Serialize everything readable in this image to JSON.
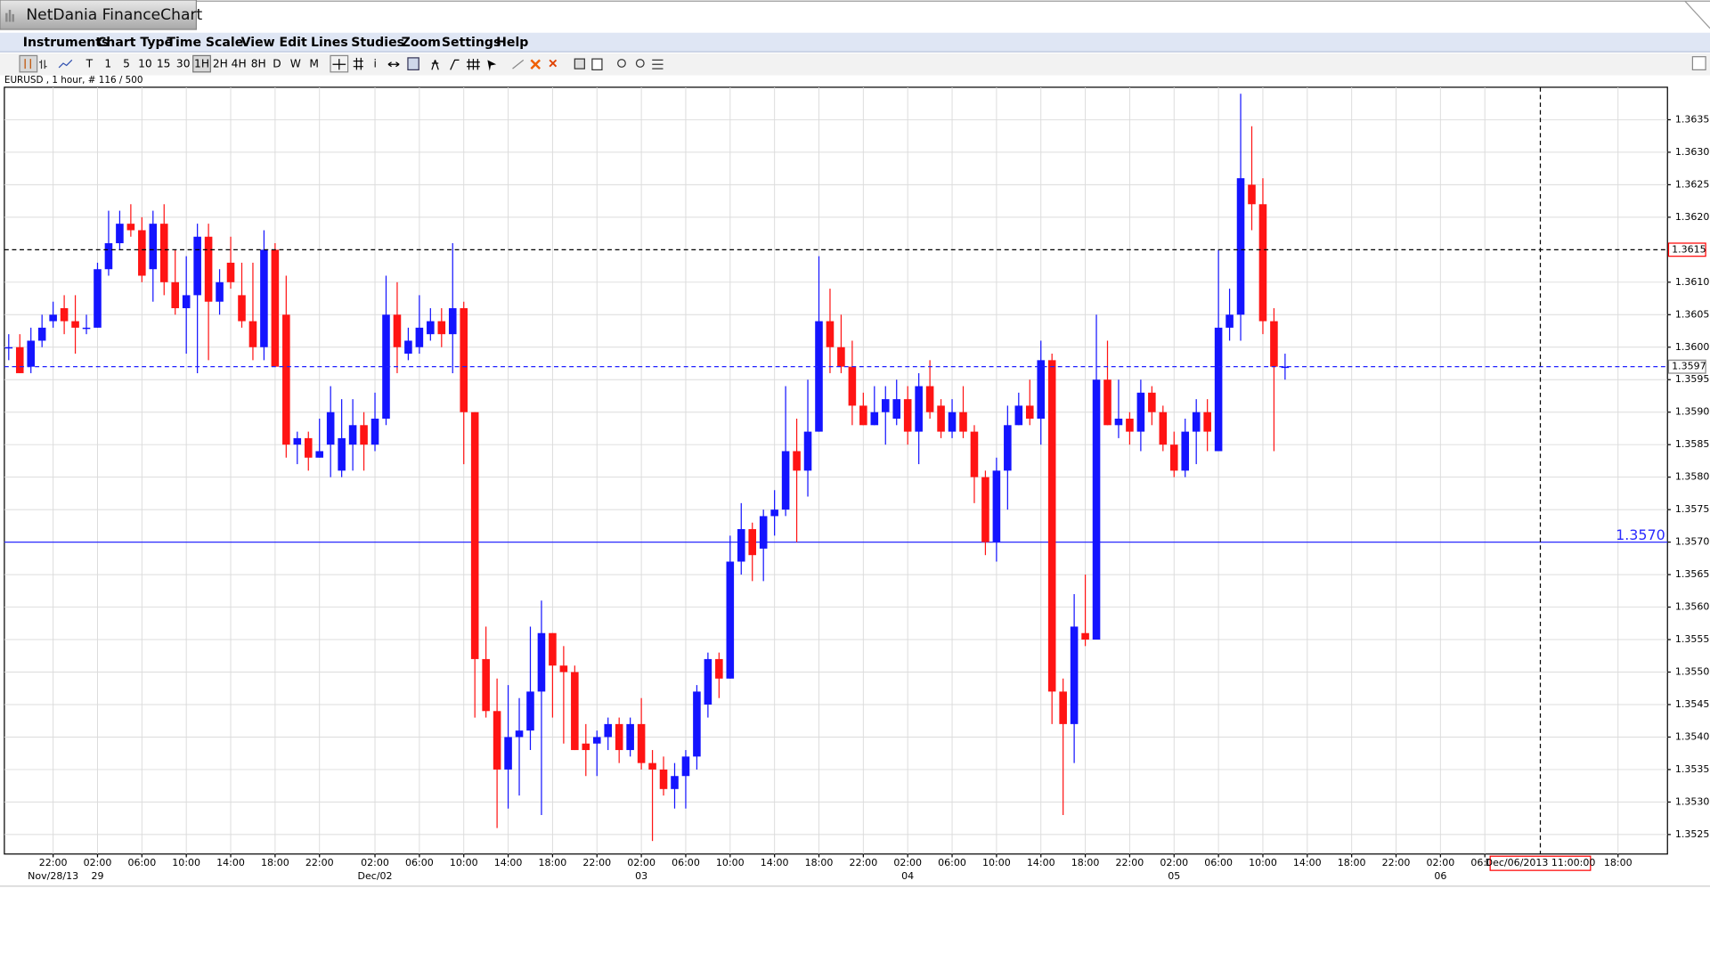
{
  "window": {
    "title": "NetDania FinanceChart",
    "menu": [
      "Instruments",
      "Chart Type",
      "Time Scale",
      "View",
      "Edit",
      "Lines",
      "Studies",
      "Zoom",
      "Settings",
      "Help"
    ],
    "toolbar": [
      "T",
      "1",
      "5",
      "10",
      "15",
      "30",
      "1H",
      "2H",
      "4H",
      "8H",
      "D",
      "W",
      "M"
    ],
    "symbol_info": "EURUSD , 1 hour, # 116 / 500"
  },
  "chart_data": {
    "type": "candlestick",
    "categories": [
      null,
      null,
      null,
      null,
      "22:00",
      null,
      null,
      null,
      "02:00",
      null,
      null,
      null,
      "06:00",
      null,
      null,
      null,
      "10:00",
      null,
      null,
      null,
      "14:00",
      null,
      null,
      null,
      "18:00",
      null,
      null,
      null,
      "22:00",
      null,
      null,
      null,
      null,
      "02:00",
      null,
      null,
      null,
      "06:00",
      null,
      null,
      null,
      "10:00",
      null,
      null,
      null,
      "14:00",
      null,
      null,
      null,
      "18:00",
      null,
      null,
      null,
      "22:00",
      null,
      null,
      null,
      "02:00",
      null,
      null,
      null,
      "06:00",
      null,
      null,
      null,
      "10:00",
      null,
      null,
      null,
      "14:00",
      null,
      null,
      null,
      "18:00",
      null,
      null,
      null,
      "22:00",
      null,
      null,
      null,
      "02:00",
      null,
      null,
      null,
      "06:00",
      null,
      null,
      null,
      "10:00",
      null,
      null,
      null,
      "14:00",
      null,
      null,
      null,
      "18:00",
      null,
      null,
      null,
      "22:00",
      null,
      null,
      null,
      "02:00",
      null,
      null,
      null,
      "06:00",
      null,
      null,
      null,
      "10:00",
      null,
      null,
      null,
      "14:00",
      null,
      null,
      null,
      "18:00",
      null,
      null,
      null,
      "22:00",
      null,
      null,
      null,
      "02:00",
      null,
      null,
      null,
      "06:00",
      null,
      null,
      null,
      null,
      null,
      null,
      null,
      null,
      null,
      null,
      null,
      "18:00",
      null,
      null,
      null
    ],
    "dates": [
      null,
      null,
      null,
      null,
      "Nov/28/13",
      null,
      null,
      null,
      "29",
      null,
      null,
      null,
      null,
      null,
      null,
      null,
      null,
      null,
      null,
      null,
      null,
      null,
      null,
      null,
      null,
      null,
      null,
      null,
      null,
      null,
      null,
      null,
      null,
      "Dec/02",
      null,
      null,
      null,
      null,
      null,
      null,
      null,
      null,
      null,
      null,
      null,
      null,
      null,
      null,
      null,
      null,
      null,
      null,
      null,
      null,
      null,
      null,
      null,
      "03",
      null,
      null,
      null,
      null,
      null,
      null,
      null,
      null,
      null,
      null,
      null,
      null,
      null,
      null,
      null,
      null,
      null,
      null,
      null,
      null,
      null,
      null,
      null,
      "04",
      null,
      null,
      null,
      null,
      null,
      null,
      null,
      null,
      null,
      null,
      null,
      null,
      null,
      null,
      null,
      null,
      null,
      null,
      null,
      null,
      null,
      null,
      null,
      "05",
      null,
      null,
      null,
      null,
      null,
      null,
      null,
      null,
      null,
      null,
      null,
      null,
      null,
      null,
      null,
      null,
      null,
      null,
      null,
      null,
      null,
      null,
      null,
      "06",
      null,
      null,
      null,
      null,
      null,
      null,
      null,
      null,
      null,
      null,
      null,
      null,
      null,
      null,
      null,
      null,
      null,
      null,
      null
    ],
    "open": [
      1.36,
      1.36,
      1.3597,
      1.3601,
      1.3604,
      1.3606,
      1.3604,
      1.3603,
      1.3603,
      1.3612,
      1.3616,
      1.3619,
      1.3618,
      1.3612,
      1.3619,
      1.361,
      1.3606,
      1.3608,
      1.3617,
      1.3607,
      1.3613,
      1.3608,
      1.3604,
      1.36,
      1.3615,
      1.3605,
      1.3585,
      1.3586,
      1.3583,
      1.3585,
      1.3581,
      1.3585,
      1.3588,
      1.3585,
      1.3589,
      1.3605,
      1.3599,
      1.36,
      1.3602,
      1.3604,
      1.3602,
      1.3606,
      1.359,
      1.3552,
      1.3544,
      1.3535,
      1.354,
      1.3541,
      1.3547,
      1.3556,
      1.3551,
      1.355,
      1.3539,
      1.3539,
      1.354,
      1.3542,
      1.3538,
      1.3542,
      1.3536,
      1.3535,
      1.3532,
      1.3534,
      1.3537,
      1.3545,
      1.3552,
      1.3549,
      1.3567,
      1.3572,
      1.3569,
      1.3574,
      1.3575,
      1.3584,
      1.3581,
      1.3587,
      1.3604,
      1.36,
      1.3597,
      1.3591,
      1.3588,
      1.359,
      1.3589,
      1.3592,
      1.3587,
      1.3594,
      1.3591,
      1.3587,
      1.359,
      1.3587,
      1.358,
      1.357,
      1.3581,
      1.3588,
      1.3591,
      1.3589,
      1.3598,
      1.3547,
      1.3542,
      1.3556,
      1.3555,
      1.3595,
      1.3588,
      1.3589,
      1.3587,
      1.3593,
      1.359,
      1.3585,
      1.3581,
      1.3587,
      1.359,
      1.3584,
      1.3603,
      1.3605,
      1.3625,
      1.3622,
      1.3604,
      1.3597,
      null,
      null,
      null,
      null,
      null,
      null,
      null,
      null,
      null,
      null,
      null,
      null,
      null,
      null,
      null,
      null,
      null,
      null,
      null,
      null,
      null,
      null,
      null,
      null,
      null,
      null,
      null,
      null,
      null,
      null,
      null,
      null,
      null
    ],
    "high": [
      1.3602,
      1.3602,
      1.3603,
      1.3605,
      1.3607,
      1.3608,
      1.3608,
      1.3605,
      1.3613,
      1.3621,
      1.3621,
      1.3622,
      1.362,
      1.3621,
      1.3622,
      1.3615,
      1.3614,
      1.3619,
      1.3619,
      1.3612,
      1.3617,
      1.3613,
      1.3613,
      1.3618,
      1.3616,
      1.3611,
      1.3587,
      1.3587,
      1.3589,
      1.3594,
      1.3592,
      1.3592,
      1.359,
      1.3593,
      1.3611,
      1.361,
      1.3603,
      1.3608,
      1.3606,
      1.3606,
      1.3616,
      1.3607,
      1.359,
      1.3557,
      1.3549,
      1.3548,
      1.3546,
      1.3557,
      1.3561,
      1.3556,
      1.3554,
      1.3551,
      1.3542,
      1.3541,
      1.3543,
      1.3543,
      1.3543,
      1.3546,
      1.3538,
      1.3537,
      1.3536,
      1.3538,
      1.3548,
      1.3553,
      1.3553,
      1.3571,
      1.3576,
      1.3573,
      1.3575,
      1.3578,
      1.3594,
      1.3589,
      1.3595,
      1.3614,
      1.3609,
      1.3605,
      1.3601,
      1.3593,
      1.3594,
      1.3594,
      1.3595,
      1.3594,
      1.3596,
      1.3598,
      1.3592,
      1.3592,
      1.3594,
      1.3588,
      1.3581,
      1.3583,
      1.3591,
      1.3593,
      1.3595,
      1.3601,
      1.3599,
      1.3549,
      1.3562,
      1.3565,
      1.3605,
      1.3601,
      1.3595,
      1.359,
      1.3595,
      1.3594,
      1.3591,
      1.3587,
      1.3589,
      1.3592,
      1.3592,
      1.3615,
      1.3609,
      1.3639,
      1.3634,
      1.3626,
      1.3606,
      1.3599,
      null,
      null,
      null,
      null,
      null,
      null,
      null,
      null,
      null,
      null,
      null,
      null,
      null,
      null,
      null,
      null,
      null,
      null,
      null,
      null,
      null,
      null,
      null,
      null,
      null,
      null,
      null,
      null,
      null,
      null,
      null,
      null,
      null
    ],
    "low": [
      1.3598,
      1.3596,
      1.3596,
      1.36,
      1.3603,
      1.3602,
      1.3599,
      1.3602,
      1.3603,
      1.3611,
      1.3615,
      1.3617,
      1.361,
      1.3607,
      1.3608,
      1.3605,
      1.3599,
      1.3596,
      1.3598,
      1.3605,
      1.3609,
      1.3603,
      1.3598,
      1.3598,
      1.3597,
      1.3583,
      1.3582,
      1.3581,
      1.3583,
      1.358,
      1.358,
      1.3581,
      1.3581,
      1.3584,
      1.3588,
      1.3596,
      1.3598,
      1.3599,
      1.3601,
      1.36,
      1.3596,
      1.3582,
      1.3543,
      1.3543,
      1.3526,
      1.3529,
      1.3531,
      1.3538,
      1.3528,
      1.3543,
      1.3539,
      1.3538,
      1.3534,
      1.3534,
      1.3538,
      1.3536,
      1.3537,
      1.3535,
      1.3524,
      1.3531,
      1.3529,
      1.3529,
      1.3535,
      1.3543,
      1.3546,
      1.3549,
      1.3565,
      1.3564,
      1.3564,
      1.3571,
      1.3574,
      1.357,
      1.3577,
      1.3587,
      1.3596,
      1.3596,
      1.3588,
      1.3588,
      1.3588,
      1.3585,
      1.3588,
      1.3585,
      1.3582,
      1.3589,
      1.3586,
      1.3586,
      1.3586,
      1.3576,
      1.3568,
      1.3567,
      1.3575,
      1.3588,
      1.3588,
      1.3585,
      1.3542,
      1.3528,
      1.3536,
      1.3554,
      1.3555,
      1.3588,
      1.3586,
      1.3585,
      1.3584,
      1.3588,
      1.3584,
      1.358,
      1.358,
      1.3582,
      1.3584,
      1.3584,
      1.3601,
      1.3601,
      1.3618,
      1.3602,
      1.3584,
      1.3595,
      null,
      null,
      null,
      null,
      null,
      null,
      null,
      null,
      null,
      null,
      null,
      null,
      null,
      null,
      null,
      null,
      null,
      null,
      null,
      null,
      null,
      null,
      null,
      null,
      null,
      null,
      null,
      null,
      null,
      null,
      null,
      null,
      null
    ],
    "close": [
      1.36,
      1.3596,
      1.3601,
      1.3603,
      1.3605,
      1.3604,
      1.3603,
      1.3603,
      1.3612,
      1.3616,
      1.3619,
      1.3618,
      1.3611,
      1.3619,
      1.361,
      1.3606,
      1.3608,
      1.3617,
      1.3607,
      1.361,
      1.361,
      1.3604,
      1.36,
      1.3615,
      1.3597,
      1.3585,
      1.3586,
      1.3583,
      1.3584,
      1.359,
      1.3586,
      1.3588,
      1.3585,
      1.3589,
      1.3605,
      1.36,
      1.3601,
      1.3603,
      1.3604,
      1.3602,
      1.3606,
      1.359,
      1.3552,
      1.3544,
      1.3535,
      1.354,
      1.3541,
      1.3547,
      1.3556,
      1.3551,
      1.355,
      1.3538,
      1.3538,
      1.354,
      1.3542,
      1.3538,
      1.3542,
      1.3536,
      1.3535,
      1.3532,
      1.3534,
      1.3537,
      1.3547,
      1.3552,
      1.3549,
      1.3567,
      1.3572,
      1.3568,
      1.3574,
      1.3575,
      1.3584,
      1.3581,
      1.3587,
      1.3604,
      1.36,
      1.3597,
      1.3591,
      1.3588,
      1.359,
      1.3592,
      1.3592,
      1.3587,
      1.3594,
      1.359,
      1.3587,
      1.359,
      1.3587,
      1.358,
      1.357,
      1.3581,
      1.3588,
      1.3591,
      1.3589,
      1.3598,
      1.3547,
      1.3542,
      1.3557,
      1.3555,
      1.3595,
      1.3588,
      1.3589,
      1.3587,
      1.3593,
      1.359,
      1.3585,
      1.3581,
      1.3587,
      1.359,
      1.3587,
      1.3603,
      1.3605,
      1.3626,
      1.3622,
      1.3604,
      1.3597,
      1.3597,
      null,
      null,
      null,
      null,
      null,
      null,
      null,
      null,
      null,
      null,
      null,
      null,
      null,
      null,
      null,
      null,
      null,
      null,
      null,
      null,
      null,
      null,
      null,
      null,
      null,
      null,
      null,
      null,
      null,
      null,
      null,
      null,
      null
    ],
    "up_color": "#1414ff",
    "down_color": "#ff1414",
    "ylim": [
      1.3522,
      1.364
    ],
    "yticks": [
      1.3525,
      {
        "value": 1.353,
        "label": "1.3530"
      },
      1.3535,
      {
        "value": 1.354,
        "label": "1.3540"
      },
      1.3545,
      {
        "value": 1.355,
        "label": "1.3550"
      },
      1.3555,
      {
        "value": 1.356,
        "label": "1.3560"
      },
      1.3565,
      {
        "value": 1.357,
        "label": "1.3570"
      },
      1.3575,
      {
        "value": 1.358,
        "label": "1.3580"
      },
      1.3585,
      {
        "value": 1.359,
        "label": "1.3590"
      },
      1.3595,
      {
        "value": 1.36,
        "label": "1.3600"
      },
      1.3605,
      {
        "value": 1.361,
        "label": "1.3610"
      },
      {
        "value": 1.362,
        "label": "1.3620"
      },
      1.3625,
      {
        "value": 1.363,
        "label": "1.3630"
      },
      1.3635
    ],
    "grid": true,
    "cursor": {
      "price": 1.3615,
      "time_label": "Dec/06/2013 11:00:00",
      "color": "#ff0000"
    },
    "last_price": {
      "value": 1.3597,
      "color": "#2020ff"
    },
    "levels": [
      {
        "value": 1.357,
        "label": "1.3570",
        "color": "#2a2aff"
      }
    ]
  }
}
